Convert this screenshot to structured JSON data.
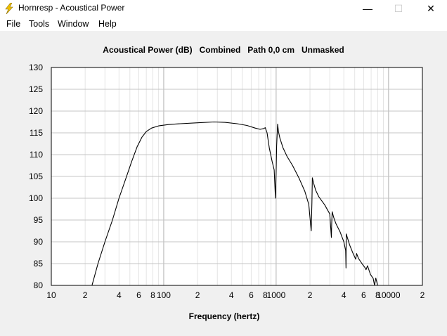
{
  "window": {
    "title": "Hornresp - Acoustical Power",
    "minimize_glyph": "—",
    "maximize_glyph": "☐",
    "close_glyph": "✕",
    "icon": "lightning-bolt-icon"
  },
  "menu": [
    "File",
    "Tools",
    "Window",
    "Help"
  ],
  "chart_title": "Acoustical Power (dB)   Combined   Path 0,0 cm   Unmasked",
  "chart_data": {
    "type": "line",
    "title": "Acoustical Power (dB)   Combined   Path 0,0 cm   Unmasked",
    "xlabel": "Frequency (hertz)",
    "ylabel": "",
    "x_scale": "log",
    "xlim": [
      10,
      20000
    ],
    "ylim": [
      80,
      130
    ],
    "grid": true,
    "y_ticks": [
      "130",
      "125",
      "120",
      "115",
      "110",
      "105",
      "100",
      "95",
      "90",
      "85",
      "80"
    ],
    "x_ticks": [
      {
        "value": 10,
        "label": "10"
      },
      {
        "value": 20,
        "label": "2"
      },
      {
        "value": 40,
        "label": "4"
      },
      {
        "value": 60,
        "label": "6"
      },
      {
        "value": 80,
        "label": "8"
      },
      {
        "value": 100,
        "label": "100"
      },
      {
        "value": 200,
        "label": "2"
      },
      {
        "value": 400,
        "label": "4"
      },
      {
        "value": 600,
        "label": "6"
      },
      {
        "value": 800,
        "label": "8"
      },
      {
        "value": 1000,
        "label": "1000"
      },
      {
        "value": 2000,
        "label": "2"
      },
      {
        "value": 4000,
        "label": "4"
      },
      {
        "value": 6000,
        "label": "6"
      },
      {
        "value": 8000,
        "label": "8"
      },
      {
        "value": 10000,
        "label": "10000"
      },
      {
        "value": 20000,
        "label": "2"
      }
    ],
    "series": [
      {
        "x": [
          23,
          26,
          30,
          35,
          40,
          46,
          52,
          58,
          64,
          70,
          78,
          90,
          110,
          140,
          200,
          280,
          350,
          450,
          550,
          650,
          720,
          780,
          800,
          830,
          870,
          920,
          960,
          985,
          1000,
          1010,
          1030,
          1050,
          1080,
          1150,
          1250,
          1400,
          1600,
          1800,
          1950,
          2050,
          2080,
          2100,
          2150,
          2250,
          2400,
          2700,
          3000,
          3100,
          3120,
          3150,
          3250,
          3400,
          3700,
          4000,
          4150,
          4180,
          4200,
          4300,
          4500,
          4800,
          5100,
          5200,
          5400,
          5800,
          6200,
          6300,
          6500,
          6900,
          7300,
          7500,
          7700,
          8000
        ],
        "y": [
          80,
          85,
          90,
          95,
          100,
          104.5,
          108.5,
          111.8,
          114,
          115.3,
          116.1,
          116.6,
          116.9,
          117.1,
          117.3,
          117.5,
          117.4,
          117.1,
          116.7,
          116.1,
          115.8,
          116.0,
          116.2,
          115.0,
          111.5,
          108.5,
          106.5,
          100.0,
          106.0,
          112.0,
          117.0,
          115.2,
          113.8,
          111.6,
          109.6,
          107.5,
          104.6,
          101.6,
          98.6,
          92.5,
          99.0,
          104.7,
          103.5,
          101.8,
          100.3,
          98.5,
          96.4,
          91.0,
          94.0,
          96.9,
          95.6,
          94.2,
          92.3,
          90.0,
          88.0,
          84.0,
          91.8,
          91.0,
          89.3,
          87.5,
          86.0,
          87.3,
          86.2,
          85.0,
          84.0,
          83.6,
          84.5,
          82.5,
          81.6,
          79.8,
          81.7,
          80.0
        ]
      }
    ]
  }
}
